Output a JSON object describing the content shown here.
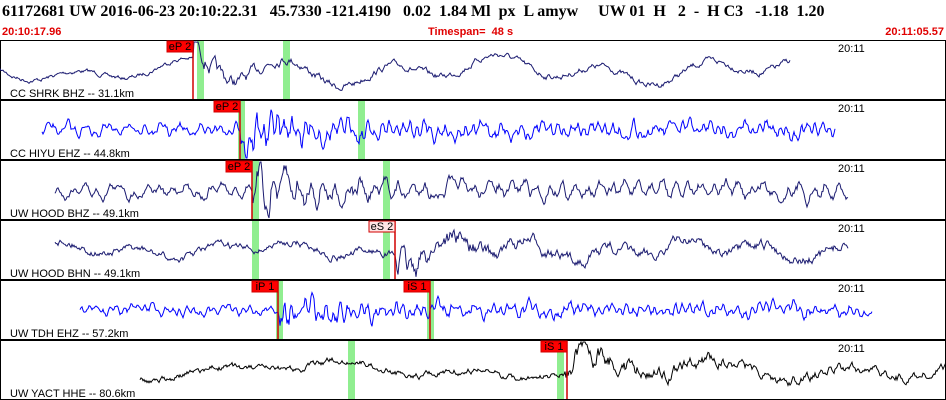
{
  "header": {
    "title": "61172681 UW 2016-06-23 20:10:22.31   45.7330 -121.4190   0.02  1.84 Ml  px  L amyw     UW 01  H   2  -  H C3   -1.18  1.20",
    "start_time": "20:10:17.96",
    "timespan": "Timespan=  48 s",
    "end_time": "20:11:05.57"
  },
  "traces": [
    {
      "label": "CC SHRK BHZ -- 31.1km",
      "time_label": "20:11",
      "picks": [
        "eP 2"
      ]
    },
    {
      "label": "CC HIYU EHZ -- 44.8km",
      "time_label": "20:11",
      "picks": [
        "eP 2"
      ]
    },
    {
      "label": "UW HOOD BHZ -- 49.1km",
      "time_label": "20:11",
      "picks": [
        "eP 2"
      ]
    },
    {
      "label": "UW HOOD BHN -- 49.1km",
      "time_label": "20:11",
      "picks": [
        "eS 2"
      ]
    },
    {
      "label": "UW TDH EHZ -- 57.2km",
      "time_label": "20:11",
      "picks": [
        "iP 1",
        "iS 1"
      ]
    },
    {
      "label": "UW YACT HHE -- 80.6km",
      "time_label": "20:11",
      "picks": [
        "iS 1"
      ]
    }
  ]
}
